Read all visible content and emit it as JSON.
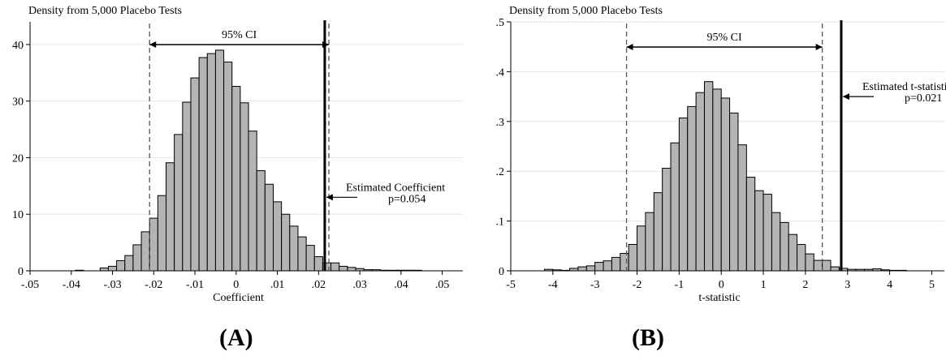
{
  "panel_labels": {
    "a": "(A)",
    "b": "(B)"
  },
  "chart_data": [
    {
      "type": "bar",
      "ylabel": "Density from 5,000 Placebo Tests",
      "xlabel": "Coefficient",
      "xlim": [
        -0.05,
        0.055
      ],
      "ylim": [
        0,
        44
      ],
      "xticks": [
        -0.05,
        -0.04,
        -0.03,
        -0.02,
        -0.01,
        0,
        0.01,
        0.02,
        0.03,
        0.04,
        0.05
      ],
      "xtick_labels": [
        "-.05",
        "-.04",
        "-.03",
        "-.02",
        "-.01",
        "0",
        ".01",
        ".02",
        ".03",
        ".04",
        ".05"
      ],
      "yticks": [
        0,
        10,
        20,
        30,
        40
      ],
      "ytick_labels": [
        "0",
        "10",
        "20",
        "30",
        "40"
      ],
      "grid": true,
      "bin_width": 0.002,
      "bin_starts": [
        -0.039,
        -0.033,
        -0.031,
        -0.029,
        -0.027,
        -0.025,
        -0.023,
        -0.021,
        -0.019,
        -0.017,
        -0.015,
        -0.013,
        -0.011,
        -0.009,
        -0.007,
        -0.005,
        -0.003,
        -0.001,
        0.001,
        0.003,
        0.005,
        0.007,
        0.009,
        0.011,
        0.013,
        0.015,
        0.017,
        0.019,
        0.021,
        0.023,
        0.025,
        0.027,
        0.029,
        0.031,
        0.033,
        0.035,
        0.037,
        0.039,
        0.041,
        0.043
      ],
      "density": [
        0.1,
        0.5,
        0.8,
        1.8,
        2.7,
        4.6,
        6.9,
        9.3,
        13.3,
        19.1,
        24.1,
        29.8,
        34.1,
        37.7,
        38.4,
        39.0,
        36.9,
        32.6,
        29.7,
        24.7,
        17.7,
        15.3,
        12.2,
        10.0,
        7.9,
        6.0,
        4.5,
        2.5,
        1.4,
        1.4,
        0.8,
        0.6,
        0.4,
        0.2,
        0.2,
        0.1,
        0.1,
        0.1,
        0.1,
        0.1
      ],
      "ci_lower": -0.021,
      "ci_upper": 0.0225,
      "ci_label": "95% CI",
      "estimate": 0.0215,
      "estimate_label": "Estimated Coefficient",
      "p_label": "p=0.054",
      "annotation_y": 13
    },
    {
      "type": "bar",
      "ylabel": "Density from 5,000 Placebo Tests",
      "xlabel": "t-statistic",
      "xlim": [
        -5,
        5.3
      ],
      "ylim": [
        0,
        0.5
      ],
      "xticks": [
        -5,
        -4,
        -3,
        -2,
        -1,
        0,
        1,
        2,
        3,
        4,
        5
      ],
      "xtick_labels": [
        "-5",
        "-4",
        "-3",
        "-2",
        "-1",
        "0",
        "1",
        "2",
        "3",
        "4",
        "5"
      ],
      "yticks": [
        0,
        0.1,
        0.2,
        0.3,
        0.4,
        0.5
      ],
      "ytick_labels": [
        "0",
        ".1",
        ".2",
        ".3",
        ".4",
        ".5"
      ],
      "grid": true,
      "bin_width": 0.2,
      "bin_starts": [
        -4.2,
        -4.0,
        -3.8,
        -3.6,
        -3.4,
        -3.2,
        -3.0,
        -2.8,
        -2.6,
        -2.4,
        -2.2,
        -2.0,
        -1.8,
        -1.6,
        -1.4,
        -1.2,
        -1.0,
        -0.8,
        -0.6,
        -0.4,
        -0.2,
        0.0,
        0.2,
        0.4,
        0.6,
        0.8,
        1.0,
        1.2,
        1.4,
        1.6,
        1.8,
        2.0,
        2.2,
        2.4,
        2.6,
        2.8,
        3.0,
        3.2,
        3.4,
        3.6,
        3.8,
        4.0,
        4.2
      ],
      "density": [
        0.003,
        0.002,
        0.001,
        0.005,
        0.008,
        0.01,
        0.017,
        0.02,
        0.027,
        0.035,
        0.053,
        0.09,
        0.117,
        0.157,
        0.206,
        0.257,
        0.307,
        0.33,
        0.358,
        0.38,
        0.365,
        0.347,
        0.317,
        0.253,
        0.188,
        0.161,
        0.154,
        0.117,
        0.097,
        0.073,
        0.053,
        0.034,
        0.021,
        0.021,
        0.008,
        0.005,
        0.003,
        0.003,
        0.003,
        0.004,
        0.002,
        0.001,
        0.001
      ],
      "ci_lower": -2.25,
      "ci_upper": 2.4,
      "ci_label": "95% CI",
      "estimate": 2.85,
      "estimate_label": "Estimated t-statistic",
      "p_label": "p=0.021",
      "annotation_y": 0.35
    }
  ]
}
